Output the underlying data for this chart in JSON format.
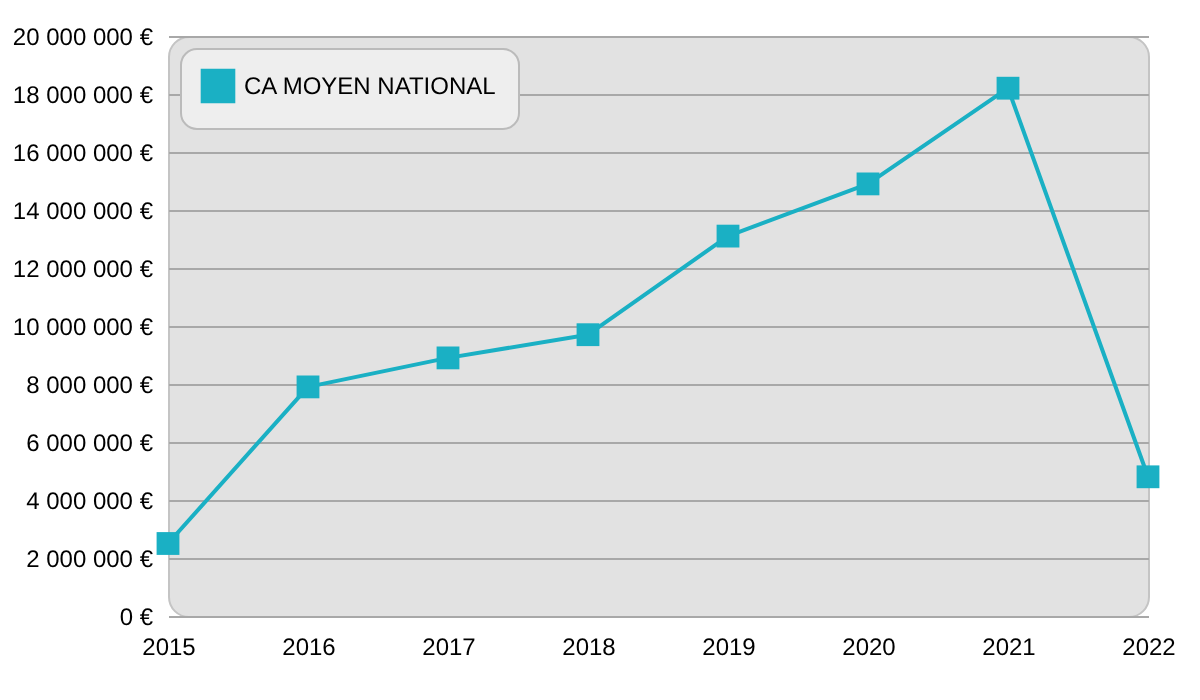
{
  "chart_data": {
    "type": "line",
    "categories": [
      "2015",
      "2016",
      "2017",
      "2018",
      "2019",
      "2020",
      "2021",
      "2022"
    ],
    "series": [
      {
        "name": "CA MOYEN NATIONAL",
        "color": "#1ab0c4",
        "values": [
          2500000,
          7900000,
          8900000,
          9700000,
          13100000,
          14900000,
          18200000,
          4800000
        ]
      }
    ],
    "ylim": [
      0,
      20000000
    ],
    "yticks": [
      {
        "value": 0,
        "label": "0 €"
      },
      {
        "value": 2000000,
        "label": "2 000 000 €"
      },
      {
        "value": 4000000,
        "label": "4 000 000 €"
      },
      {
        "value": 6000000,
        "label": "6 000 000 €"
      },
      {
        "value": 8000000,
        "label": "8 000 000 €"
      },
      {
        "value": 10000000,
        "label": "10 000 000 €"
      },
      {
        "value": 12000000,
        "label": "12 000 000 €"
      },
      {
        "value": 14000000,
        "label": "14 000 000 €"
      },
      {
        "value": 16000000,
        "label": "16 000 000 €"
      },
      {
        "value": 18000000,
        "label": "18 000 000 €"
      },
      {
        "value": 20000000,
        "label": "20 000 000 €"
      }
    ],
    "grid": "y",
    "legend": "top left",
    "marker": "square",
    "line_style": "solid"
  }
}
